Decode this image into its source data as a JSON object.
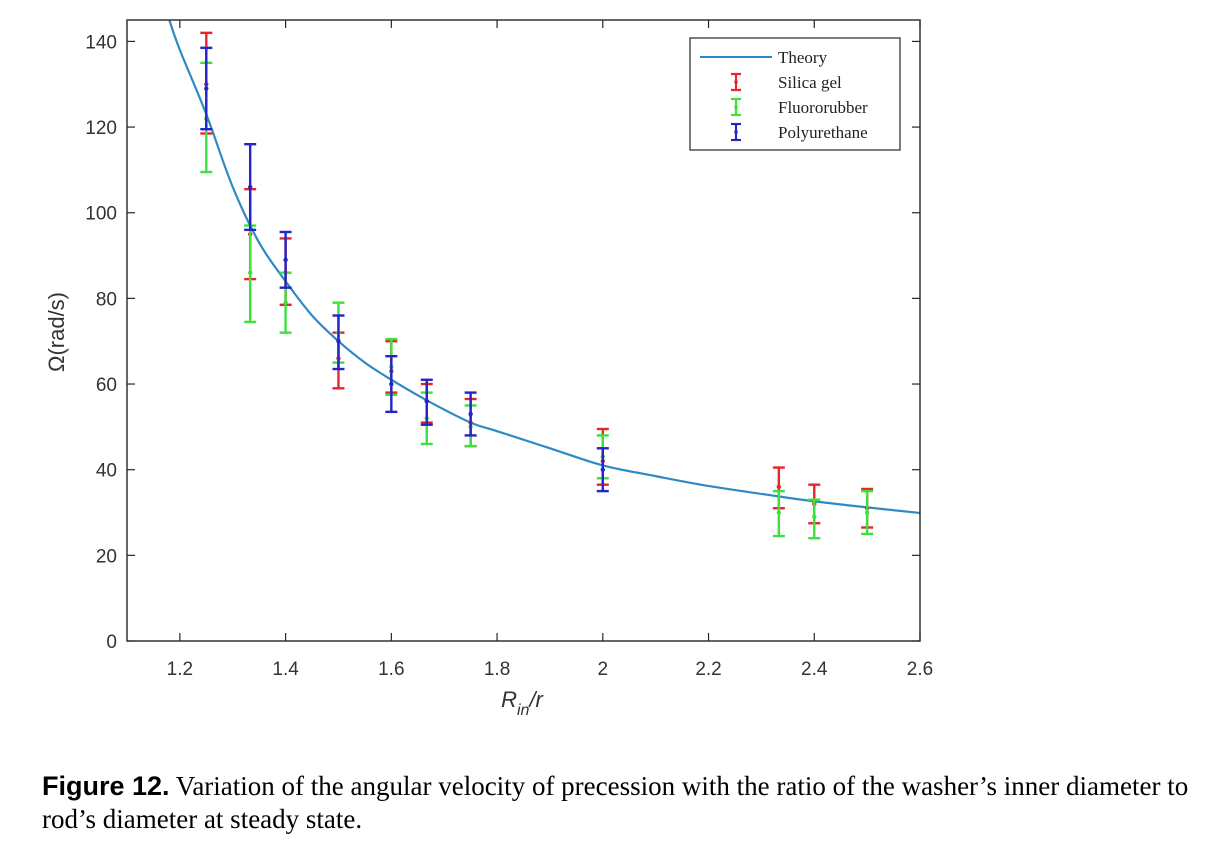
{
  "chart_data": {
    "type": "scatter",
    "xlabel_main": "R",
    "xlabel_sub": "in",
    "xlabel_rest": "/r",
    "ylabel": "Ω(rad/s)",
    "xlim": [
      1.1,
      2.6
    ],
    "ylim": [
      0,
      145
    ],
    "xticks": [
      1.2,
      1.4,
      1.6,
      1.8,
      2,
      2.2,
      2.4,
      2.6
    ],
    "xtick_labels": [
      "1.2",
      "1.4",
      "1.6",
      "1.8",
      "2",
      "2.2",
      "2.4",
      "2.6"
    ],
    "yticks": [
      0,
      20,
      40,
      60,
      80,
      100,
      120,
      140
    ],
    "ytick_labels": [
      "0",
      "20",
      "40",
      "60",
      "80",
      "100",
      "120",
      "140"
    ],
    "grid": false,
    "legend_position": "top-right",
    "theory": {
      "name": "Theory",
      "color": "#2f89c4",
      "x": [
        1.18,
        1.2,
        1.25,
        1.3,
        1.35,
        1.4,
        1.45,
        1.5,
        1.55,
        1.6,
        1.67,
        1.75,
        1.8,
        1.9,
        2.0,
        2.1,
        2.2,
        2.33,
        2.4,
        2.5,
        2.6
      ],
      "y": [
        145,
        138,
        123,
        106,
        93,
        84,
        76,
        70,
        65,
        61,
        56,
        51,
        49,
        45,
        41,
        38.5,
        36.2,
        33.8,
        32.6,
        31.2,
        29.9
      ]
    },
    "series": [
      {
        "name": "Silica gel",
        "color": "#e8262a",
        "points": [
          {
            "x": 1.25,
            "y": 130,
            "lo": 118.5,
            "hi": 142
          },
          {
            "x": 1.333,
            "y": 95,
            "lo": 84.5,
            "hi": 105.5
          },
          {
            "x": 1.4,
            "y": 86,
            "lo": 78.5,
            "hi": 94
          },
          {
            "x": 1.5,
            "y": 66,
            "lo": 59,
            "hi": 72
          },
          {
            "x": 1.6,
            "y": 63,
            "lo": 58,
            "hi": 70
          },
          {
            "x": 1.667,
            "y": 56,
            "lo": 51,
            "hi": 60
          },
          {
            "x": 1.75,
            "y": 51,
            "lo": 45.5,
            "hi": 56.5
          },
          {
            "x": 2.0,
            "y": 42,
            "lo": 36.5,
            "hi": 49.5
          },
          {
            "x": 2.333,
            "y": 36,
            "lo": 31,
            "hi": 40.5
          },
          {
            "x": 2.4,
            "y": 32,
            "lo": 27.5,
            "hi": 36.5
          },
          {
            "x": 2.5,
            "y": 31,
            "lo": 26.5,
            "hi": 35.5
          }
        ]
      },
      {
        "name": "Fluororubber",
        "color": "#3ce23c",
        "points": [
          {
            "x": 1.25,
            "y": 122,
            "lo": 109.5,
            "hi": 135
          },
          {
            "x": 1.333,
            "y": 86,
            "lo": 74.5,
            "hi": 97
          },
          {
            "x": 1.4,
            "y": 79,
            "lo": 72,
            "hi": 86
          },
          {
            "x": 1.5,
            "y": 72,
            "lo": 65,
            "hi": 79
          },
          {
            "x": 1.6,
            "y": 64,
            "lo": 57.5,
            "hi": 70.5
          },
          {
            "x": 1.667,
            "y": 52,
            "lo": 46,
            "hi": 58
          },
          {
            "x": 1.75,
            "y": 50,
            "lo": 45.5,
            "hi": 55
          },
          {
            "x": 2.0,
            "y": 43,
            "lo": 38,
            "hi": 48
          },
          {
            "x": 2.333,
            "y": 30,
            "lo": 24.5,
            "hi": 35
          },
          {
            "x": 2.4,
            "y": 29,
            "lo": 24,
            "hi": 33
          },
          {
            "x": 2.5,
            "y": 30,
            "lo": 25,
            "hi": 35
          }
        ]
      },
      {
        "name": "Polyurethane",
        "color": "#2424c8",
        "points": [
          {
            "x": 1.25,
            "y": 129,
            "lo": 119.5,
            "hi": 138.5
          },
          {
            "x": 1.333,
            "y": 106,
            "lo": 96,
            "hi": 116
          },
          {
            "x": 1.4,
            "y": 89,
            "lo": 82.5,
            "hi": 95.5
          },
          {
            "x": 1.5,
            "y": 70,
            "lo": 63.5,
            "hi": 76
          },
          {
            "x": 1.6,
            "y": 60,
            "lo": 53.5,
            "hi": 66.5
          },
          {
            "x": 1.667,
            "y": 56,
            "lo": 50.5,
            "hi": 61
          },
          {
            "x": 1.75,
            "y": 53,
            "lo": 48,
            "hi": 58
          },
          {
            "x": 2.0,
            "y": 40,
            "lo": 35,
            "hi": 45
          }
        ]
      }
    ]
  },
  "caption": {
    "label": "Figure 12.",
    "text": " Variation of the angular velocity of precession with the ratio of the washer’s inner diameter to rod’s diameter at steady state."
  }
}
